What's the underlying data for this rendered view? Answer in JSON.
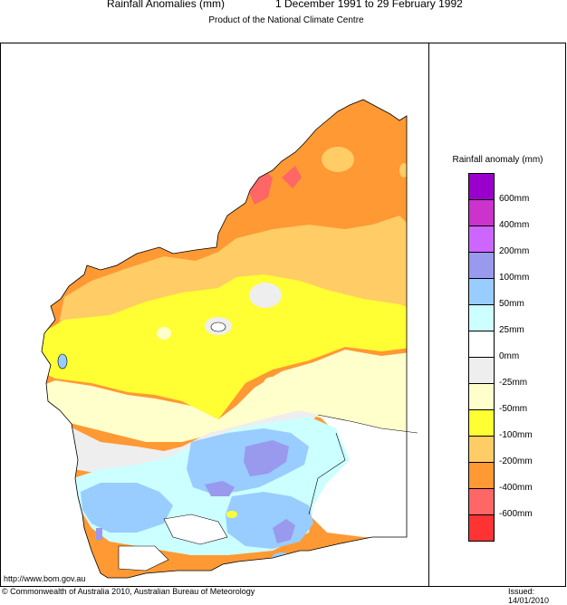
{
  "header": {
    "title": "Rainfall Anomalies (mm)",
    "period": "1 December 1991 to 29 February 1992",
    "subtitle": "Product of the National Climate Centre"
  },
  "legend": {
    "title": "Rainfall anomaly (mm)",
    "classes": [
      {
        "label": "600mm",
        "color": "#9900cc"
      },
      {
        "label": "400mm",
        "color": "#cc33cc"
      },
      {
        "label": "200mm",
        "color": "#cc66ff"
      },
      {
        "label": "100mm",
        "color": "#9999ee"
      },
      {
        "label": "50mm",
        "color": "#99ccff"
      },
      {
        "label": "25mm",
        "color": "#ccffff"
      },
      {
        "label": "0mm",
        "color": "#ffffff"
      },
      {
        "label": "-25mm",
        "color": "#eeeeee"
      },
      {
        "label": "-50mm",
        "color": "#ffffcc"
      },
      {
        "label": "-100mm",
        "color": "#ffff33"
      },
      {
        "label": "-200mm",
        "color": "#ffcc66"
      },
      {
        "label": "-400mm",
        "color": "#ff9933"
      },
      {
        "label": "-600mm",
        "color": "#ff6666"
      },
      {
        "label": "",
        "color": "#ff3333"
      }
    ]
  },
  "footer": {
    "url": "http://www.bom.gov.au",
    "copyright": "© Commonwealth of Australia 2010, Australian Bureau of Meteorology",
    "issued": "Issued: 14/01/2010"
  }
}
